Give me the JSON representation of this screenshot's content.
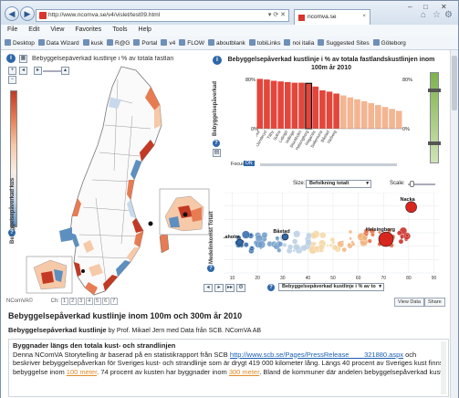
{
  "browser": {
    "url": "http://www.ncomva.se/v4/vislet/test09.html",
    "tab_title": "ncomva.se",
    "menu": [
      "File",
      "Edit",
      "View",
      "Favorites",
      "Tools",
      "Help"
    ],
    "favorites": [
      "Desktop",
      "Data Wizard",
      "kusk",
      "R@G",
      "Portal",
      "v4",
      "FLOW",
      "aboutblank",
      "tobiLinks",
      "noi italia",
      "Suggested Sites",
      "Göteborg"
    ]
  },
  "map_view": {
    "title": "Bebyggelsepåverkad kustlinje i % av totala fastlan",
    "legend_label": "Bebyggelsepåverkad kus",
    "color_scale": [
      "#c23a24",
      "#e77b52",
      "#f6c9a8",
      "#f7eee6",
      "#c7d9ea",
      "#5d8fc0"
    ]
  },
  "bar_chart": {
    "title": "Bebyggelsepåverkad kustlinje i % av totala fastlandskustlinjen inom 100m år 2010",
    "vertical_label": "Bebyggelsepåverkad",
    "focus_label": "Focus",
    "focus_state": "ON",
    "right_axis_top": "80%",
    "right_axis_bottom": "0%",
    "left_axis_top": "80%",
    "left_axis_bottom": "0%",
    "highlight": "Helsingborg"
  },
  "chart_data": [
    {
      "type": "bar",
      "title": "Bebyggelsepåverkad kustlinje i % av totala fastlandskustlinjen inom 100m år 2010",
      "categories": [
        "Nacka",
        "Danderyd",
        "Täby",
        "Solna",
        "Lidingö",
        "Vellinge",
        "Stockholm",
        "Helsingborg",
        "Höganäs",
        "Sollentuna",
        "Båstad",
        "Varberg"
      ],
      "values": [
        78,
        77,
        75,
        74,
        73,
        72,
        72,
        71,
        66,
        60,
        58,
        55
      ],
      "tail_values": [
        52,
        49,
        46,
        43,
        40,
        37,
        34,
        31,
        28
      ],
      "ylim": [
        0,
        80
      ]
    },
    {
      "type": "scatter",
      "xlabel": "Bebyggelsepåverkad kustlinje i % av to",
      "ylabel": "Medelinkomst Totalt",
      "size_label": "Befolkning totalt",
      "x_ticks": [
        10,
        20,
        30,
        40,
        50,
        60,
        70,
        80,
        90
      ],
      "xlim": [
        8,
        92
      ],
      "labels": [
        {
          "name": "Laholm",
          "x": 13,
          "y": 0.38
        },
        {
          "name": "Båstad",
          "x": 31,
          "y": 0.45
        },
        {
          "name": "Helsingborg",
          "x": 71,
          "y": 0.42
        },
        {
          "name": "Nacka",
          "x": 81,
          "y": 0.82
        }
      ]
    }
  ],
  "scatter_controls": {
    "size_label": "Size:",
    "size_value": "Befolkning totalt",
    "scale_label": "Scale:",
    "x_dropdown": "Bebyggelsepåverkad kustlinje i % av to",
    "y_label": "Medelinkomst Totalt"
  },
  "story": {
    "brand": "NComVA©",
    "chapter_label": "Ch:",
    "pages": [
      "1",
      "2",
      "3",
      "4",
      "5",
      "6",
      "7"
    ],
    "view_data": "View Data",
    "share": "Share",
    "heading": "Bebyggelsepåverkad kustlinje inom 100m och 300m år 2010",
    "sub_title": "Bebyggelsepåverkad kustlinje",
    "sub_by": " by Prof. Mikael Jern med Data från SCB. NComVA AB",
    "body_heading": "Byggnader längs den totala kust- och strandlinjen",
    "body_1": "Denna NComVA Storytelling är baserad på en statistikrapport från SCB ",
    "body_link": "http://www.scb.se/Pages/PressRelease____321880.aspx",
    "body_2": " och beskriver bebyggelsepåverkan för Sveriges kust- och strandlinje som är drygt 419 000 kilometer lång. Längs 40 procent av Sveriges kust finns bebyggelse inom ",
    "body_link2": "100 meter",
    "body_3": ". 74 procent av kusten har byggnader inom ",
    "body_link3": "300 meter",
    "body_4": ". Bland de kommuner där andelen bebyggelsepåverkad kust"
  }
}
